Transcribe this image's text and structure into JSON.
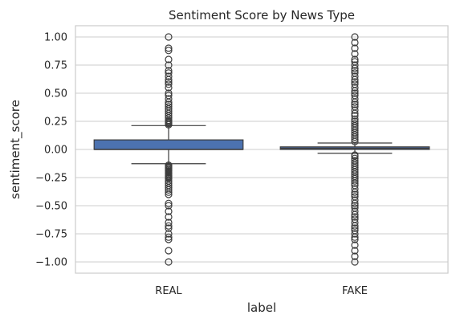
{
  "chart_data": {
    "type": "box",
    "title": "Sentiment Score by News Type",
    "xlabel": "label",
    "ylabel": "sentiment_score",
    "categories": [
      "REAL",
      "FAKE"
    ],
    "ylim": [
      -1.1,
      1.1
    ],
    "yticks": [
      -1.0,
      -0.75,
      -0.5,
      -0.25,
      0.0,
      0.25,
      0.5,
      0.75,
      1.0
    ],
    "ytick_labels": [
      "−1.00",
      "−0.75",
      "−0.50",
      "−0.25",
      "0.00",
      "0.25",
      "0.50",
      "0.75",
      "1.00"
    ],
    "grid": "horizontal",
    "box_color": "#4c72b0",
    "series": [
      {
        "category": "REAL",
        "q1": 0.0,
        "median": 0.0,
        "q3": 0.085,
        "whisker_low": -0.127,
        "whisker_high": 0.212,
        "outliers": [
          -1.0,
          -0.9,
          -0.8,
          -0.78,
          -0.75,
          -0.7,
          -0.68,
          -0.65,
          -0.6,
          -0.55,
          -0.5,
          -0.48,
          -0.4,
          -0.38,
          -0.36,
          -0.34,
          -0.32,
          -0.3,
          -0.28,
          -0.26,
          -0.25,
          -0.24,
          -0.23,
          -0.22,
          -0.21,
          -0.2,
          -0.19,
          -0.18,
          -0.17,
          -0.16,
          -0.15,
          -0.14,
          0.22,
          0.23,
          0.24,
          0.25,
          0.26,
          0.28,
          0.3,
          0.32,
          0.34,
          0.36,
          0.38,
          0.4,
          0.42,
          0.45,
          0.48,
          0.5,
          0.55,
          0.58,
          0.6,
          0.62,
          0.65,
          0.68,
          0.7,
          0.75,
          0.8,
          0.88,
          0.9,
          1.0
        ]
      },
      {
        "category": "FAKE",
        "q1": 0.0,
        "median": 0.01,
        "q3": 0.023,
        "whisker_low": -0.034,
        "whisker_high": 0.057,
        "outliers": [
          -1.0,
          -0.95,
          -0.9,
          -0.85,
          -0.8,
          -0.78,
          -0.75,
          -0.72,
          -0.7,
          -0.68,
          -0.65,
          -0.62,
          -0.6,
          -0.58,
          -0.55,
          -0.52,
          -0.5,
          -0.48,
          -0.45,
          -0.42,
          -0.4,
          -0.38,
          -0.35,
          -0.32,
          -0.3,
          -0.28,
          -0.26,
          -0.24,
          -0.22,
          -0.2,
          -0.18,
          -0.16,
          -0.14,
          -0.12,
          -0.1,
          -0.08,
          -0.06,
          -0.05,
          0.07,
          0.09,
          0.11,
          0.13,
          0.15,
          0.17,
          0.19,
          0.21,
          0.23,
          0.25,
          0.27,
          0.3,
          0.32,
          0.35,
          0.38,
          0.4,
          0.42,
          0.45,
          0.48,
          0.5,
          0.52,
          0.55,
          0.58,
          0.6,
          0.62,
          0.65,
          0.68,
          0.7,
          0.72,
          0.75,
          0.78,
          0.8,
          0.85,
          0.9,
          0.95,
          1.0
        ]
      }
    ]
  }
}
